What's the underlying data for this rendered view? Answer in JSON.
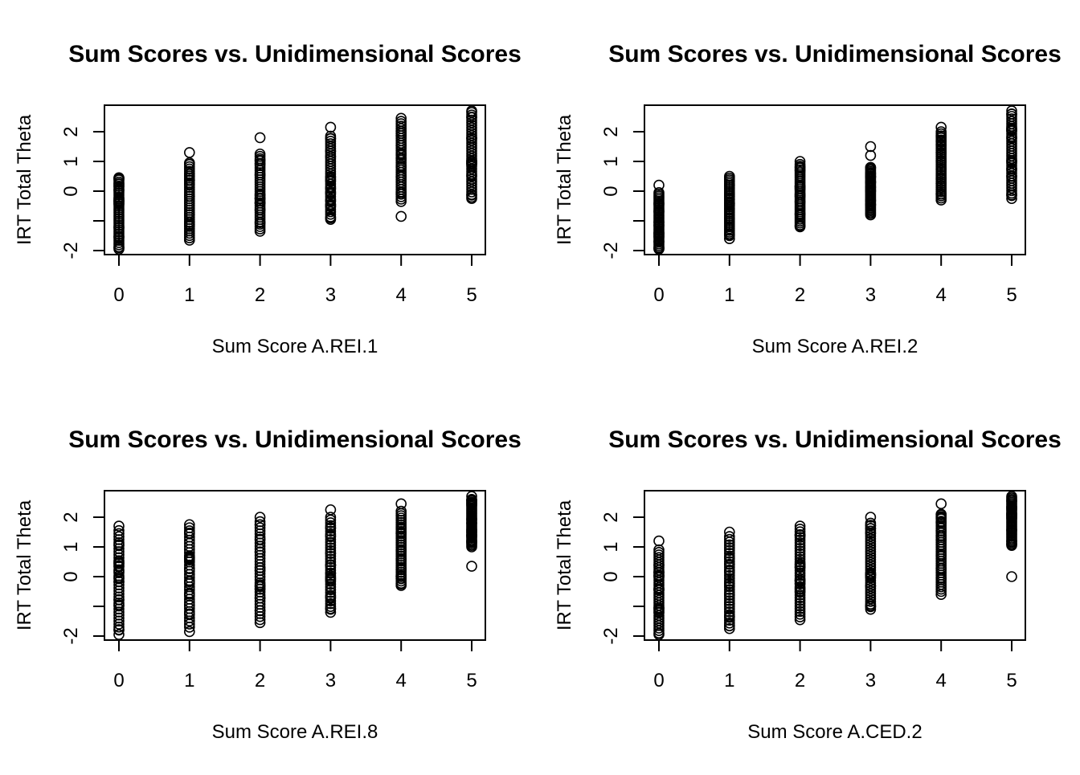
{
  "chart_data": [
    {
      "type": "scatter",
      "title": "Sum Scores vs. Unidimensional Scores",
      "xlabel": "Sum Score A.REI.1",
      "ylabel": "IRT Total Theta",
      "xlim": [
        -0.2,
        5.2
      ],
      "ylim": [
        -2.1,
        2.9
      ],
      "xticks": [
        "0",
        "1",
        "2",
        "3",
        "4",
        "5"
      ],
      "yticks": [
        "-2",
        "-1",
        "0",
        "1",
        "2"
      ],
      "ytick_labels_shown": [
        "-2",
        "",
        "0",
        "1",
        "2"
      ],
      "points_by_x": [
        {
          "x": 0,
          "ymin": -1.95,
          "ymax": 0.45,
          "extra": [
            0.4,
            0.25,
            -1.9
          ]
        },
        {
          "x": 1,
          "ymin": -1.65,
          "ymax": 0.9,
          "extra": [
            1.3,
            0.95
          ]
        },
        {
          "x": 2,
          "ymin": -1.35,
          "ymax": 1.25,
          "extra": [
            1.8
          ]
        },
        {
          "x": 3,
          "ymin": -0.95,
          "ymax": 1.85,
          "extra": [
            2.15,
            -0.9
          ]
        },
        {
          "x": 4,
          "ymin": -0.35,
          "ymax": 2.35,
          "extra": [
            -0.85,
            2.45
          ]
        },
        {
          "x": 5,
          "ymin": -0.2,
          "ymax": 2.65,
          "extra": [
            -0.25,
            2.7
          ]
        }
      ]
    },
    {
      "type": "scatter",
      "title": "Sum Scores vs. Unidimensional Scores",
      "xlabel": "Sum Score A.REI.2",
      "ylabel": "IRT Total Theta",
      "xlim": [
        -0.2,
        5.2
      ],
      "ylim": [
        -2.1,
        2.9
      ],
      "xticks": [
        "0",
        "1",
        "2",
        "3",
        "4",
        "5"
      ],
      "yticks": [
        "-2",
        "-1",
        "0",
        "1",
        "2"
      ],
      "ytick_labels_shown": [
        "-2",
        "",
        "0",
        "1",
        "2"
      ],
      "points_by_x": [
        {
          "x": 0,
          "ymin": -1.95,
          "ymax": -0.05,
          "extra": [
            0.2,
            -1.9
          ]
        },
        {
          "x": 1,
          "ymin": -1.5,
          "ymax": 0.5,
          "extra": [
            -1.6
          ]
        },
        {
          "x": 2,
          "ymin": -1.2,
          "ymax": 0.9,
          "extra": [
            1.0
          ]
        },
        {
          "x": 3,
          "ymin": -0.75,
          "ymax": 0.8,
          "extra": [
            1.2,
            1.5,
            -0.8
          ]
        },
        {
          "x": 4,
          "ymin": -0.3,
          "ymax": 2.0,
          "extra": [
            2.15
          ]
        },
        {
          "x": 5,
          "ymin": -0.15,
          "ymax": 2.6,
          "extra": [
            -0.25,
            2.7
          ]
        }
      ]
    },
    {
      "type": "scatter",
      "title": "Sum Scores vs. Unidimensional Scores",
      "xlabel": "Sum Score A.REI.8",
      "ylabel": "IRT Total Theta",
      "xlim": [
        -0.2,
        5.2
      ],
      "ylim": [
        -2.1,
        2.9
      ],
      "xticks": [
        "0",
        "1",
        "2",
        "3",
        "4",
        "5"
      ],
      "yticks": [
        "-2",
        "-1",
        "0",
        "1",
        "2"
      ],
      "ytick_labels_shown": [
        "-2",
        "",
        "0",
        "1",
        "2"
      ],
      "points_by_x": [
        {
          "x": 0,
          "ymin": -1.8,
          "ymax": 1.55,
          "extra": [
            1.7,
            -1.95
          ]
        },
        {
          "x": 1,
          "ymin": -1.7,
          "ymax": 1.75,
          "extra": [
            -1.85
          ]
        },
        {
          "x": 2,
          "ymin": -1.55,
          "ymax": 1.85,
          "extra": [
            2.0
          ]
        },
        {
          "x": 3,
          "ymin": -1.1,
          "ymax": 2.0,
          "extra": [
            2.25,
            -1.2
          ]
        },
        {
          "x": 4,
          "ymin": -0.3,
          "ymax": 2.2,
          "extra": [
            2.45,
            -0.25
          ]
        },
        {
          "x": 5,
          "ymin": 1.0,
          "ymax": 2.6,
          "extra": [
            0.35,
            1.2,
            1.8,
            2.7
          ]
        }
      ]
    },
    {
      "type": "scatter",
      "title": "Sum Scores vs. Unidimensional Scores",
      "xlabel": "Sum Score A.CED.2",
      "ylabel": "IRT Total Theta",
      "xlim": [
        -0.2,
        5.2
      ],
      "ylim": [
        -2.1,
        2.9
      ],
      "xticks": [
        "0",
        "1",
        "2",
        "3",
        "4",
        "5"
      ],
      "yticks": [
        "-2",
        "-1",
        "0",
        "1",
        "2"
      ],
      "ytick_labels_shown": [
        "-2",
        "",
        "0",
        "1",
        "2"
      ],
      "points_by_x": [
        {
          "x": 0,
          "ymin": -1.9,
          "ymax": 0.9,
          "extra": [
            1.2,
            -1.95
          ]
        },
        {
          "x": 1,
          "ymin": -1.75,
          "ymax": 1.35,
          "extra": [
            1.5
          ]
        },
        {
          "x": 2,
          "ymin": -1.45,
          "ymax": 1.6,
          "extra": [
            1.7
          ]
        },
        {
          "x": 3,
          "ymin": -1.1,
          "ymax": 1.8,
          "extra": [
            2.0
          ]
        },
        {
          "x": 4,
          "ymin": -0.5,
          "ymax": 2.1,
          "extra": [
            2.45,
            -0.6
          ]
        },
        {
          "x": 5,
          "ymin": 1.05,
          "ymax": 2.7,
          "extra": [
            0.0
          ]
        }
      ]
    }
  ]
}
